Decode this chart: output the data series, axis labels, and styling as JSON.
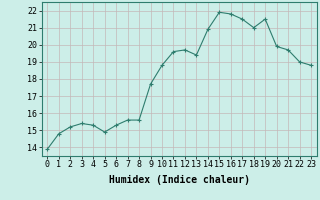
{
  "x": [
    0,
    1,
    2,
    3,
    4,
    5,
    6,
    7,
    8,
    9,
    10,
    11,
    12,
    13,
    14,
    15,
    16,
    17,
    18,
    19,
    20,
    21,
    22,
    23
  ],
  "y": [
    13.9,
    14.8,
    15.2,
    15.4,
    15.3,
    14.9,
    15.3,
    15.6,
    15.6,
    17.7,
    18.8,
    19.6,
    19.7,
    19.4,
    20.9,
    21.9,
    21.8,
    21.5,
    21.0,
    21.5,
    19.9,
    19.7,
    19.0,
    18.8
  ],
  "line_color": "#2e7d6e",
  "marker": "+",
  "marker_size": 3,
  "bg_color": "#cceee8",
  "grid_color": "#c4b8b8",
  "axis_bg": "#cceee8",
  "xlabel": "Humidex (Indice chaleur)",
  "ylim": [
    13.5,
    22.5
  ],
  "xlim": [
    -0.5,
    23.5
  ],
  "yticks": [
    14,
    15,
    16,
    17,
    18,
    19,
    20,
    21,
    22
  ],
  "xticks": [
    0,
    1,
    2,
    3,
    4,
    5,
    6,
    7,
    8,
    9,
    10,
    11,
    12,
    13,
    14,
    15,
    16,
    17,
    18,
    19,
    20,
    21,
    22,
    23
  ],
  "label_fontsize": 7,
  "tick_fontsize": 6
}
